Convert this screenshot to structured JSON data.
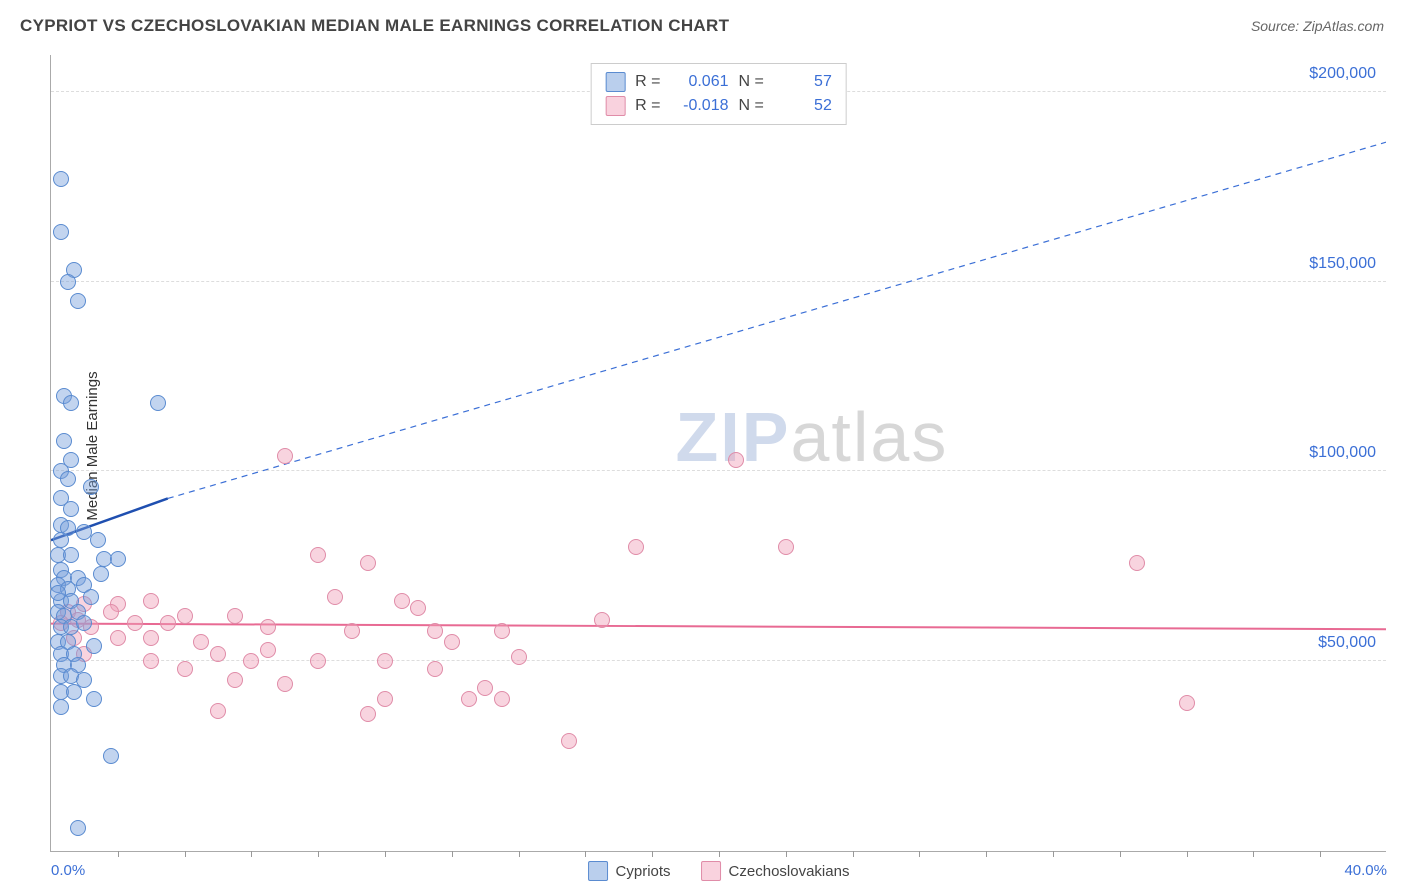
{
  "title": "CYPRIOT VS CZECHOSLOVAKIAN MEDIAN MALE EARNINGS CORRELATION CHART",
  "source": "Source: ZipAtlas.com",
  "ylabel": "Median Male Earnings",
  "watermark": {
    "part1": "ZIP",
    "part2": "atlas"
  },
  "chart": {
    "type": "scatter",
    "xlim": [
      0,
      40
    ],
    "ylim": [
      0,
      210000
    ],
    "x_unit": "%",
    "y_unit": "$",
    "background_color": "#ffffff",
    "grid_color": "#dddddd",
    "grid_style": "dashed",
    "axis_color": "#aaaaaa",
    "y_ticks": [
      {
        "value": 50000,
        "label": "$50,000"
      },
      {
        "value": 100000,
        "label": "$100,000"
      },
      {
        "value": 150000,
        "label": "$150,000"
      },
      {
        "value": 200000,
        "label": "$200,000"
      }
    ],
    "x_ticks_left": {
      "value": 0,
      "label": "0.0%"
    },
    "x_ticks_right": {
      "value": 40,
      "label": "40.0%"
    },
    "x_minor_ticks": [
      2,
      4,
      6,
      8,
      10,
      12,
      14,
      16,
      18,
      20,
      22,
      24,
      26,
      28,
      30,
      32,
      34,
      36,
      38
    ],
    "tick_label_color": "#3b6fd6",
    "tick_label_fontsize": 15
  },
  "series": {
    "cypriots": {
      "label": "Cypriots",
      "r_label": "R =",
      "r_value": "0.061",
      "n_label": "N =",
      "n_value": "57",
      "marker": {
        "shape": "circle",
        "radius": 8,
        "fill_color": "rgba(120,160,220,0.45)",
        "stroke_color": "#5a8bd0",
        "stroke_width": 1.5
      },
      "trend": {
        "solid": {
          "x1": 0,
          "y1": 82000,
          "x2": 3.5,
          "y2": 93000,
          "color": "#1f4fb0",
          "width": 2.5
        },
        "dashed": {
          "x1": 3.5,
          "y1": 93000,
          "x2": 40,
          "y2": 187000,
          "color": "#3b6fd6",
          "width": 1.2,
          "dash": "6,5"
        }
      },
      "legend_swatch": {
        "fill": "rgba(140,175,225,0.6)",
        "border": "#5a8bd0"
      },
      "points": [
        [
          0.3,
          177000
        ],
        [
          0.3,
          163000
        ],
        [
          0.7,
          153000
        ],
        [
          0.5,
          150000
        ],
        [
          0.8,
          145000
        ],
        [
          0.4,
          120000
        ],
        [
          0.6,
          118000
        ],
        [
          3.2,
          118000
        ],
        [
          0.4,
          108000
        ],
        [
          0.6,
          103000
        ],
        [
          0.3,
          100000
        ],
        [
          0.5,
          98000
        ],
        [
          1.2,
          96000
        ],
        [
          0.3,
          93000
        ],
        [
          0.6,
          90000
        ],
        [
          0.3,
          86000
        ],
        [
          0.5,
          85000
        ],
        [
          1.0,
          84000
        ],
        [
          0.3,
          82000
        ],
        [
          1.4,
          82000
        ],
        [
          0.2,
          78000
        ],
        [
          0.6,
          78000
        ],
        [
          1.6,
          77000
        ],
        [
          0.3,
          74000
        ],
        [
          2.0,
          77000
        ],
        [
          0.4,
          72000
        ],
        [
          0.8,
          72000
        ],
        [
          0.2,
          70000
        ],
        [
          0.5,
          69000
        ],
        [
          1.0,
          70000
        ],
        [
          0.3,
          66000
        ],
        [
          0.6,
          66000
        ],
        [
          1.2,
          67000
        ],
        [
          0.2,
          63000
        ],
        [
          0.4,
          62000
        ],
        [
          0.8,
          63000
        ],
        [
          0.3,
          59000
        ],
        [
          0.6,
          59000
        ],
        [
          1.0,
          60000
        ],
        [
          0.2,
          55000
        ],
        [
          0.5,
          55000
        ],
        [
          0.3,
          52000
        ],
        [
          0.7,
          52000
        ],
        [
          1.3,
          54000
        ],
        [
          0.4,
          49000
        ],
        [
          0.8,
          49000
        ],
        [
          0.3,
          46000
        ],
        [
          0.6,
          46000
        ],
        [
          1.0,
          45000
        ],
        [
          0.3,
          42000
        ],
        [
          0.7,
          42000
        ],
        [
          0.3,
          38000
        ],
        [
          1.3,
          40000
        ],
        [
          1.8,
          25000
        ],
        [
          0.8,
          6000
        ],
        [
          0.2,
          68000
        ],
        [
          1.5,
          73000
        ]
      ]
    },
    "czechoslovakians": {
      "label": "Czechoslovakians",
      "r_label": "R =",
      "r_value": "-0.018",
      "n_label": "N =",
      "n_value": "52",
      "marker": {
        "shape": "circle",
        "radius": 8,
        "fill_color": "rgba(240,160,185,0.45)",
        "stroke_color": "#e08ca8",
        "stroke_width": 1.5
      },
      "trend": {
        "solid": {
          "x1": 0,
          "y1": 60000,
          "x2": 40,
          "y2": 58500,
          "color": "#e86a93",
          "width": 2
        }
      },
      "legend_swatch": {
        "fill": "rgba(245,180,200,0.6)",
        "border": "#e08ca8"
      },
      "points": [
        [
          7.0,
          104000
        ],
        [
          20.5,
          103000
        ],
        [
          17.5,
          80000
        ],
        [
          22.0,
          80000
        ],
        [
          32.5,
          76000
        ],
        [
          8.0,
          78000
        ],
        [
          9.5,
          76000
        ],
        [
          3.0,
          66000
        ],
        [
          2.0,
          65000
        ],
        [
          1.0,
          65000
        ],
        [
          0.5,
          63000
        ],
        [
          1.8,
          63000
        ],
        [
          8.5,
          67000
        ],
        [
          10.5,
          66000
        ],
        [
          11.0,
          64000
        ],
        [
          4.0,
          62000
        ],
        [
          5.5,
          62000
        ],
        [
          0.8,
          61000
        ],
        [
          2.5,
          60000
        ],
        [
          3.5,
          60000
        ],
        [
          1.2,
          59000
        ],
        [
          0.3,
          60000
        ],
        [
          6.5,
          59000
        ],
        [
          9.0,
          58000
        ],
        [
          11.5,
          58000
        ],
        [
          13.5,
          58000
        ],
        [
          0.7,
          56000
        ],
        [
          2.0,
          56000
        ],
        [
          3.0,
          56000
        ],
        [
          4.5,
          55000
        ],
        [
          12.0,
          55000
        ],
        [
          16.5,
          61000
        ],
        [
          1.0,
          52000
        ],
        [
          5.0,
          52000
        ],
        [
          6.0,
          50000
        ],
        [
          8.0,
          50000
        ],
        [
          10.0,
          50000
        ],
        [
          11.5,
          48000
        ],
        [
          14.0,
          51000
        ],
        [
          5.5,
          45000
        ],
        [
          7.0,
          44000
        ],
        [
          13.0,
          43000
        ],
        [
          10.0,
          40000
        ],
        [
          12.5,
          40000
        ],
        [
          13.5,
          40000
        ],
        [
          5.0,
          37000
        ],
        [
          9.5,
          36000
        ],
        [
          34.0,
          39000
        ],
        [
          15.5,
          29000
        ],
        [
          4.0,
          48000
        ],
        [
          6.5,
          53000
        ],
        [
          3.0,
          50000
        ]
      ]
    }
  }
}
